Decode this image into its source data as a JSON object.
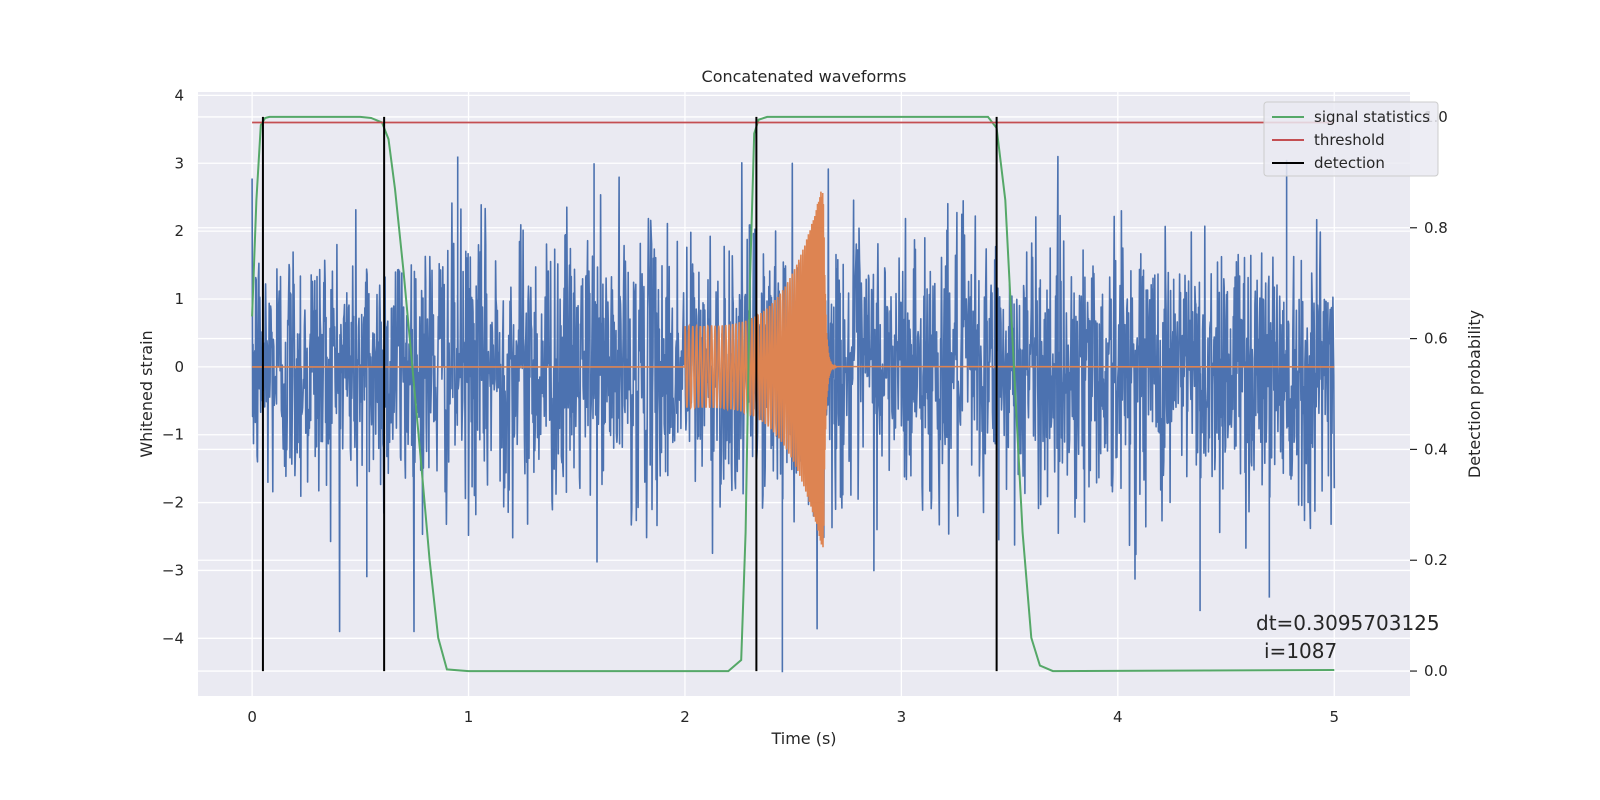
{
  "chart_data": {
    "type": "line",
    "title": "Concatenated waveforms",
    "xlabel": "Time (s)",
    "ylabel": "Whitened strain",
    "y2label": "Detection probability",
    "xlim": [
      -0.25,
      5.35
    ],
    "ylim": [
      -4.85,
      4.05
    ],
    "y2lim": [
      -0.045,
      1.045
    ],
    "x_ticks": [
      0,
      1,
      2,
      3,
      4,
      5
    ],
    "y_ticks": [
      4,
      3,
      2,
      1,
      0,
      -1,
      -2,
      -3,
      -4
    ],
    "y2_ticks": [
      1.0,
      0.8,
      0.6,
      0.4,
      0.2,
      0.0
    ],
    "grid": true,
    "legend_position": "top-right",
    "colors": {
      "noise": "#4c72b0",
      "waveform": "#dd8452",
      "statistics": "#55a868",
      "threshold": "#c44e52",
      "detection": "#000000",
      "background": "#eaeaf2",
      "grid": "#ffffff"
    },
    "legend": [
      "signal statistics",
      "threshold",
      "detection"
    ],
    "series": [
      {
        "name": "signal statistics",
        "axis": "right",
        "x": [
          0.0,
          0.02,
          0.04,
          0.06,
          0.08,
          0.1,
          0.5,
          0.55,
          0.6,
          0.63,
          0.66,
          0.7,
          0.74,
          0.78,
          0.82,
          0.86,
          0.9,
          1.0,
          2.0,
          2.2,
          2.26,
          2.28,
          2.3,
          2.32,
          2.34,
          2.38,
          3.4,
          3.44,
          3.48,
          3.52,
          3.56,
          3.6,
          3.64,
          3.7,
          5.0
        ],
        "y": [
          0.64,
          0.85,
          0.985,
          0.998,
          1.0,
          1.0,
          1.0,
          0.998,
          0.99,
          0.96,
          0.87,
          0.72,
          0.55,
          0.38,
          0.2,
          0.06,
          0.003,
          0.0,
          0.0,
          0.0,
          0.02,
          0.25,
          0.7,
          0.97,
          0.995,
          1.0,
          1.0,
          0.98,
          0.85,
          0.55,
          0.25,
          0.06,
          0.01,
          0.0,
          0.002
        ]
      },
      {
        "name": "threshold",
        "axis": "right",
        "x": [
          0.0,
          5.0
        ],
        "y": [
          0.99,
          0.99
        ]
      },
      {
        "name": "detection",
        "axis": "right",
        "x": [
          0.05,
          0.61,
          2.33,
          3.44
        ],
        "y_range": [
          0.0,
          1.0
        ]
      }
    ],
    "noise": {
      "x_range": [
        0.0,
        5.0
      ],
      "typical_amplitude": 1.0,
      "max_peak": 3.1,
      "min_peak": -4.5
    },
    "waveform": {
      "x_range": [
        2.0,
        2.66
      ],
      "start_amplitude": 0.6,
      "peak_amplitude": 2.8,
      "peak_time": 2.64,
      "min_value": -2.9
    },
    "annotation": {
      "line1": "dt=0.3095703125",
      "line2": "i=1087"
    }
  }
}
